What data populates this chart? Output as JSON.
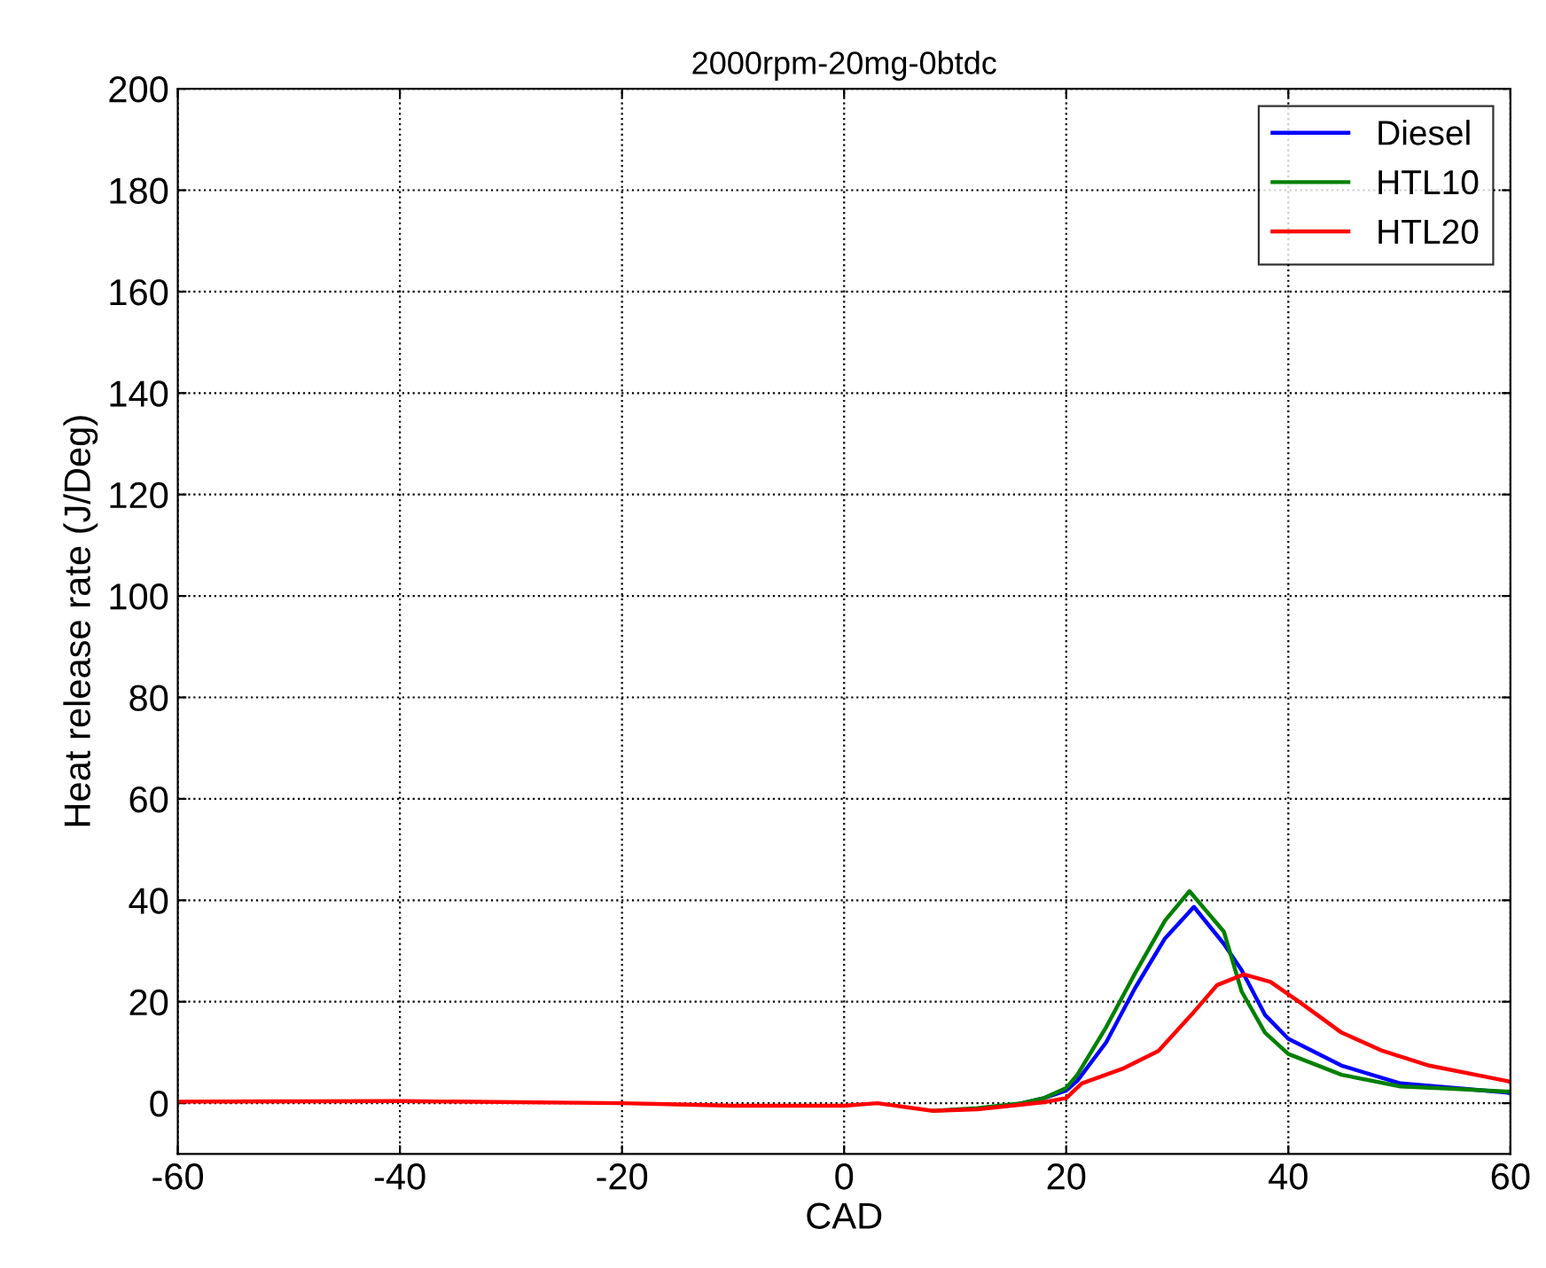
{
  "chart_data": {
    "type": "line",
    "title": "2000rpm-20mg-0btdc",
    "xlabel": "CAD",
    "ylabel": "Heat release rate (J/Deg)",
    "xlim": [
      -60,
      60
    ],
    "xticks": [
      -60,
      -40,
      -20,
      0,
      20,
      40,
      60
    ],
    "ylim": [
      -10,
      200
    ],
    "yticks": [
      0,
      20,
      40,
      60,
      80,
      100,
      120,
      140,
      160,
      180,
      200
    ],
    "grid": true,
    "legend": "top right",
    "series": [
      {
        "name": "Diesel",
        "color": "#0000ff",
        "x": [
          16,
          18,
          20,
          21,
          23.6,
          26.2,
          28.9,
          31.5,
          34.2,
          35.8,
          37.9,
          40,
          44.8,
          50.1,
          55,
          59.6,
          60
        ],
        "values": [
          0,
          1,
          2.5,
          4.4,
          12,
          22.7,
          32.5,
          38.7,
          31.4,
          26.2,
          17.4,
          12.7,
          7.4,
          3.9,
          3,
          2.1,
          2
        ]
      },
      {
        "name": "HTL10",
        "color": "#008000",
        "x": [
          8,
          12,
          16,
          18,
          20,
          21,
          23.6,
          26.2,
          28.9,
          31.1,
          34.2,
          35.8,
          37.9,
          40,
          44.8,
          50.1,
          55,
          59.6,
          60
        ],
        "values": [
          -1.5,
          -1,
          0,
          1,
          3,
          5.6,
          15,
          25.6,
          36,
          41.8,
          33.8,
          22,
          13.9,
          9.7,
          5.6,
          3.3,
          2.8,
          2.3,
          2.3
        ]
      },
      {
        "name": "HTL20",
        "color": "#ff0000",
        "x": [
          -60,
          -40,
          -20,
          -10,
          0,
          3,
          8,
          12,
          16,
          18,
          20,
          21.4,
          25.1,
          28.3,
          31.5,
          33.6,
          36,
          38.4,
          41.1,
          44.8,
          48.5,
          52.7,
          59.6,
          60
        ],
        "values": [
          0.3,
          0.4,
          0,
          -0.5,
          -0.5,
          0,
          -1.5,
          -1.2,
          -0.3,
          0.2,
          1,
          3.9,
          6.8,
          10.3,
          18,
          23.3,
          25.4,
          23.9,
          19.8,
          13.9,
          10.3,
          7.4,
          4.4,
          4.2
        ]
      }
    ]
  }
}
